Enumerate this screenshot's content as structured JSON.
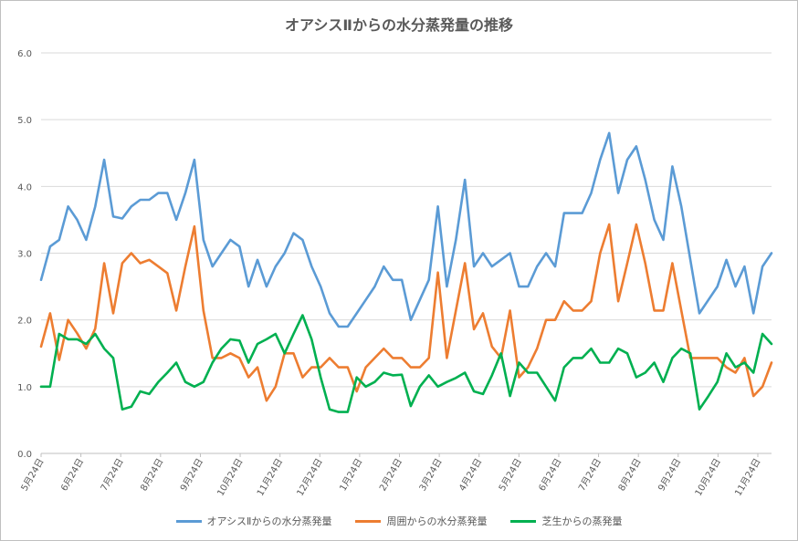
{
  "chart_data": {
    "type": "line",
    "title": "オアシスⅡからの水分蒸発量の推移",
    "xlabel": "",
    "ylabel": "",
    "ylim": [
      0,
      6
    ],
    "yticks": [
      "0.0",
      "1.0",
      "2.0",
      "3.0",
      "4.0",
      "5.0",
      "6.0"
    ],
    "xticks": [
      "5月24日",
      "6月24日",
      "7月24日",
      "8月24日",
      "9月24日",
      "10月24日",
      "11月24日",
      "12月24日",
      "1月24日",
      "2月24日",
      "3月24日",
      "4月24日",
      "5月24日",
      "6月24日",
      "7月24日",
      "8月24日",
      "9月24日",
      "10月24日",
      "11月24日"
    ],
    "grid": true,
    "legend_position": "bottom",
    "series": [
      {
        "name": "オアシスⅡからの水分蒸発量",
        "color": "#5B9BD5",
        "values": [
          2.6,
          3.1,
          3.2,
          3.7,
          3.5,
          3.2,
          3.7,
          4.4,
          3.55,
          3.52,
          3.7,
          3.8,
          3.8,
          3.9,
          3.9,
          3.5,
          3.9,
          4.4,
          3.2,
          2.8,
          3.0,
          3.2,
          3.1,
          2.5,
          2.9,
          2.5,
          2.8,
          3.0,
          3.3,
          3.2,
          2.8,
          2.5,
          2.1,
          1.9,
          1.9,
          2.1,
          2.3,
          2.5,
          2.8,
          2.6,
          2.6,
          2.0,
          2.3,
          2.6,
          3.7,
          2.5,
          3.2,
          4.1,
          2.8,
          3.0,
          2.8,
          2.9,
          3.0,
          2.5,
          2.5,
          2.8,
          3.0,
          2.8,
          3.6,
          3.6,
          3.6,
          3.9,
          4.4,
          4.8,
          3.9,
          4.4,
          4.6,
          4.1,
          3.5,
          3.2,
          4.3,
          3.7,
          2.9,
          2.1,
          2.3,
          2.5,
          2.9,
          2.5,
          2.8,
          2.1,
          2.8,
          3.0
        ]
      },
      {
        "name": "周囲からの水分蒸発量",
        "color": "#ED7D31",
        "values": [
          1.6,
          2.1,
          1.4,
          2.0,
          1.8,
          1.57,
          1.87,
          2.85,
          2.1,
          2.85,
          3.0,
          2.85,
          2.9,
          2.8,
          2.7,
          2.14,
          2.8,
          3.4,
          2.14,
          1.43,
          1.43,
          1.5,
          1.43,
          1.14,
          1.29,
          0.79,
          1.0,
          1.5,
          1.5,
          1.14,
          1.29,
          1.29,
          1.43,
          1.29,
          1.29,
          0.93,
          1.29,
          1.43,
          1.57,
          1.43,
          1.43,
          1.29,
          1.29,
          1.43,
          2.71,
          1.43,
          2.14,
          2.85,
          1.86,
          2.1,
          1.6,
          1.43,
          2.14,
          1.14,
          1.29,
          1.57,
          2.0,
          2.0,
          2.28,
          2.14,
          2.14,
          2.28,
          3.0,
          3.43,
          2.28,
          2.85,
          3.43,
          2.85,
          2.14,
          2.14,
          2.85,
          2.14,
          1.43,
          1.43,
          1.43,
          1.43,
          1.29,
          1.21,
          1.43,
          0.86,
          1.0,
          1.36
        ]
      },
      {
        "name": "芝生からの蒸発量",
        "color": "#00B050",
        "values": [
          1.0,
          1.0,
          1.79,
          1.71,
          1.71,
          1.64,
          1.79,
          1.57,
          1.43,
          0.66,
          0.7,
          0.93,
          0.89,
          1.07,
          1.21,
          1.36,
          1.07,
          1.0,
          1.07,
          1.36,
          1.57,
          1.71,
          1.69,
          1.36,
          1.64,
          1.71,
          1.79,
          1.5,
          1.79,
          2.07,
          1.71,
          1.14,
          0.66,
          0.62,
          0.62,
          1.14,
          1.0,
          1.07,
          1.21,
          1.17,
          1.18,
          0.71,
          1.0,
          1.17,
          1.0,
          1.07,
          1.13,
          1.21,
          0.93,
          0.89,
          1.17,
          1.5,
          0.86,
          1.36,
          1.21,
          1.21,
          1.0,
          0.79,
          1.29,
          1.43,
          1.43,
          1.57,
          1.36,
          1.36,
          1.57,
          1.5,
          1.14,
          1.21,
          1.36,
          1.07,
          1.43,
          1.57,
          1.5,
          0.66,
          0.86,
          1.07,
          1.5,
          1.29,
          1.36,
          1.21,
          1.79,
          1.64
        ]
      }
    ]
  }
}
